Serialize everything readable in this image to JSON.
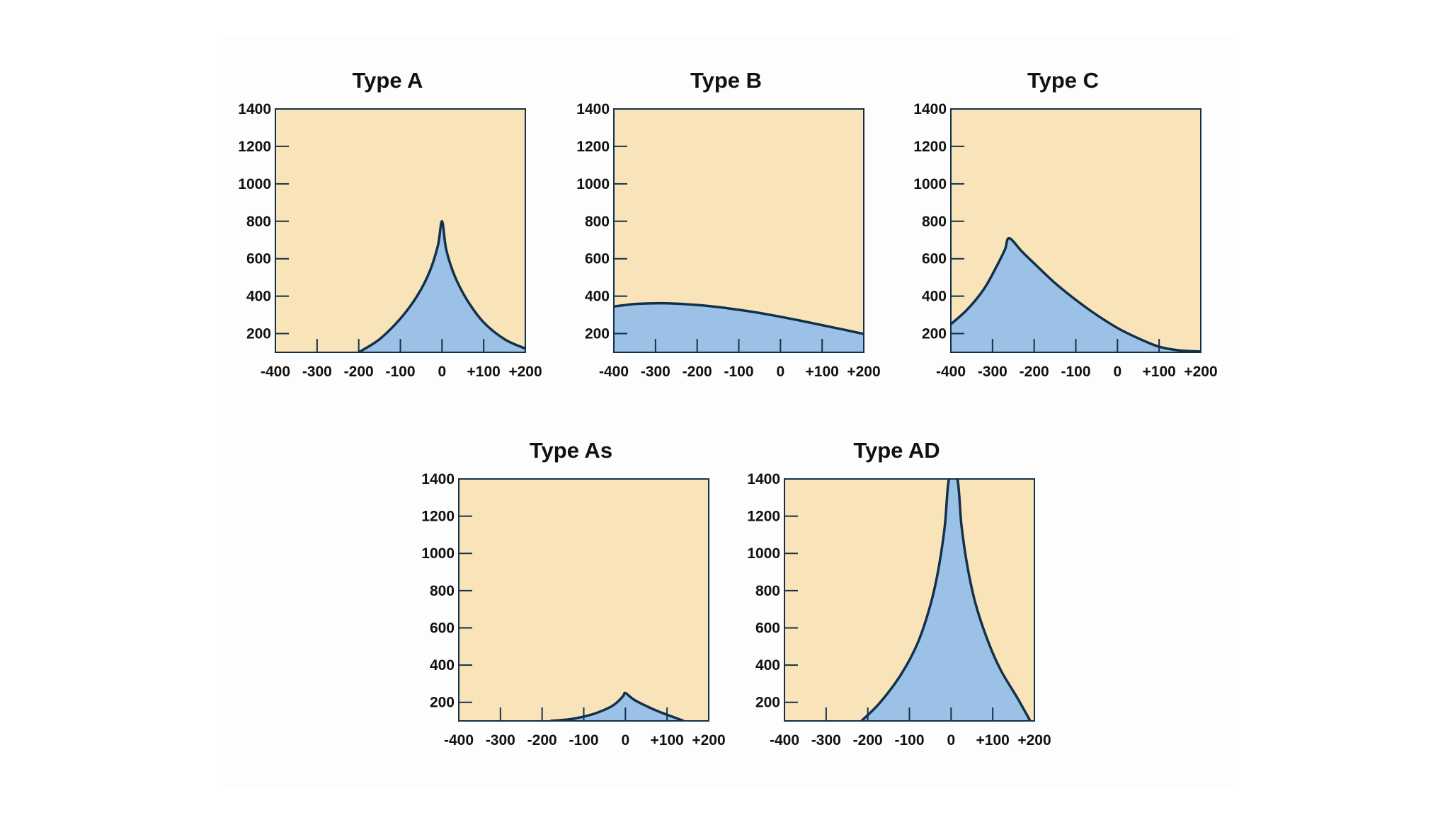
{
  "colors": {
    "plot_background": "#f9e4b9",
    "fill": "#9bc2e6",
    "outline": "#13304a",
    "text": "#111111"
  },
  "chart_data": [
    {
      "type": "area",
      "title": "Type A",
      "xlim": [
        -400,
        200
      ],
      "ylim": [
        100,
        1400
      ],
      "x_ticks": [
        -400,
        -300,
        -200,
        -100,
        0,
        100,
        200
      ],
      "x_tick_labels": [
        "-400",
        "-300",
        "-200",
        "-100",
        "0",
        "+100",
        "+200"
      ],
      "y_ticks": [
        200,
        400,
        600,
        800,
        1000,
        1200,
        1400
      ],
      "y_tick_labels": [
        "200",
        "400",
        "600",
        "800",
        "1000",
        "1200",
        "1400"
      ],
      "x": [
        -200,
        -150,
        -100,
        -60,
        -30,
        -10,
        0,
        10,
        30,
        60,
        100,
        150,
        200
      ],
      "y": [
        100,
        170,
        280,
        400,
        530,
        670,
        800,
        650,
        510,
        380,
        260,
        170,
        120
      ]
    },
    {
      "type": "area",
      "title": "Type B",
      "xlim": [
        -400,
        200
      ],
      "ylim": [
        100,
        1400
      ],
      "x_ticks": [
        -400,
        -300,
        -200,
        -100,
        0,
        100,
        200
      ],
      "x_tick_labels": [
        "-400",
        "-300",
        "-200",
        "-100",
        "0",
        "+100",
        "+200"
      ],
      "y_ticks": [
        200,
        400,
        600,
        800,
        1000,
        1200,
        1400
      ],
      "y_tick_labels": [
        "200",
        "400",
        "600",
        "800",
        "1000",
        "1200",
        "1400"
      ],
      "x": [
        -400,
        -350,
        -300,
        -250,
        -200,
        -150,
        -100,
        -50,
        0,
        50,
        100,
        150,
        200
      ],
      "y": [
        345,
        358,
        362,
        360,
        353,
        342,
        327,
        310,
        290,
        268,
        245,
        222,
        198
      ]
    },
    {
      "type": "area",
      "title": "Type C",
      "xlim": [
        -400,
        200
      ],
      "ylim": [
        100,
        1400
      ],
      "x_ticks": [
        -400,
        -300,
        -200,
        -100,
        0,
        100,
        200
      ],
      "x_tick_labels": [
        "-400",
        "-300",
        "-200",
        "-100",
        "0",
        "+100",
        "+200"
      ],
      "y_ticks": [
        200,
        400,
        600,
        800,
        1000,
        1200,
        1400
      ],
      "y_tick_labels": [
        "200",
        "400",
        "600",
        "800",
        "1000",
        "1200",
        "1400"
      ],
      "x": [
        -400,
        -360,
        -320,
        -290,
        -270,
        -260,
        -230,
        -200,
        -150,
        -100,
        -50,
        0,
        50,
        100,
        150,
        200
      ],
      "y": [
        250,
        330,
        440,
        560,
        650,
        710,
        640,
        575,
        470,
        380,
        300,
        230,
        175,
        130,
        110,
        105
      ]
    },
    {
      "type": "area",
      "title": "Type As",
      "xlim": [
        -400,
        200
      ],
      "ylim": [
        100,
        1400
      ],
      "x_ticks": [
        -400,
        -300,
        -200,
        -100,
        0,
        100,
        200
      ],
      "x_tick_labels": [
        "-400",
        "-300",
        "-200",
        "-100",
        "0",
        "+100",
        "+200"
      ],
      "y_ticks": [
        200,
        400,
        600,
        800,
        1000,
        1200,
        1400
      ],
      "y_tick_labels": [
        "200",
        "400",
        "600",
        "800",
        "1000",
        "1200",
        "1400"
      ],
      "x": [
        -180,
        -130,
        -80,
        -40,
        -20,
        -5,
        0,
        20,
        50,
        80,
        110,
        140
      ],
      "y": [
        100,
        110,
        135,
        170,
        200,
        235,
        250,
        215,
        180,
        150,
        125,
        100
      ]
    },
    {
      "type": "area",
      "title": "Type AD",
      "xlim": [
        -400,
        200
      ],
      "ylim": [
        100,
        1400
      ],
      "x_ticks": [
        -400,
        -300,
        -200,
        -100,
        0,
        100,
        200
      ],
      "x_tick_labels": [
        "-400",
        "-300",
        "-200",
        "-100",
        "0",
        "+100",
        "+200"
      ],
      "y_ticks": [
        200,
        400,
        600,
        800,
        1000,
        1200,
        1400
      ],
      "y_tick_labels": [
        "200",
        "400",
        "600",
        "800",
        "1000",
        "1200",
        "1400"
      ],
      "x": [
        -215,
        -170,
        -120,
        -80,
        -50,
        -30,
        -15,
        -5,
        15,
        25,
        40,
        60,
        90,
        120,
        160,
        190
      ],
      "y": [
        100,
        200,
        350,
        520,
        720,
        920,
        1150,
        1400,
        1400,
        1150,
        920,
        720,
        520,
        370,
        220,
        100
      ]
    }
  ]
}
